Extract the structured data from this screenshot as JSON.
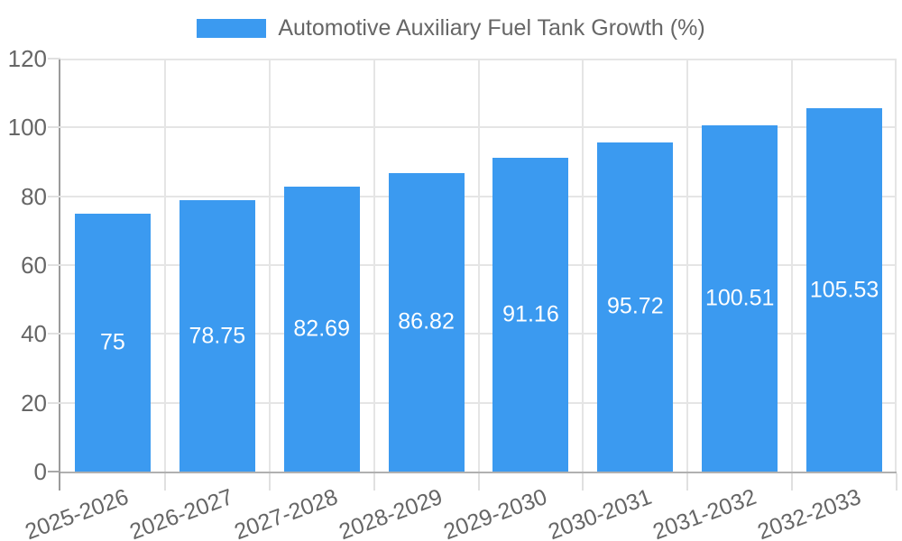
{
  "legend": {
    "label": "Automotive Auxiliary Fuel Tank Growth (%)"
  },
  "colors": {
    "bar": "#3B9AF0",
    "grid": "#e5e5e5",
    "tick": "#e0e0e0",
    "axis_y": "#9a9a9a",
    "axis_x": "#b0b0b0",
    "text": "#666666",
    "value_label": "#ffffff",
    "background": "#ffffff"
  },
  "chart_data": {
    "type": "bar",
    "title": "",
    "xlabel": "",
    "ylabel": "",
    "categories": [
      "2025-2026",
      "2026-2027",
      "2027-2028",
      "2028-2029",
      "2029-2030",
      "2030-2031",
      "2031-2032",
      "2032-2033"
    ],
    "values": [
      75,
      78.75,
      82.69,
      86.82,
      91.16,
      95.72,
      100.51,
      105.53
    ],
    "value_labels": [
      "75",
      "78.75",
      "82.69",
      "86.82",
      "91.16",
      "95.72",
      "100.51",
      "105.53"
    ],
    "series_name": "Automotive Auxiliary Fuel Tank Growth (%)",
    "ylim": [
      0,
      120
    ],
    "yticks": [
      0,
      20,
      40,
      60,
      80,
      100,
      120
    ],
    "grid": true,
    "legend_position": "top",
    "value_label_position": "center-of-bar",
    "x_label_rotation_deg": -20
  }
}
